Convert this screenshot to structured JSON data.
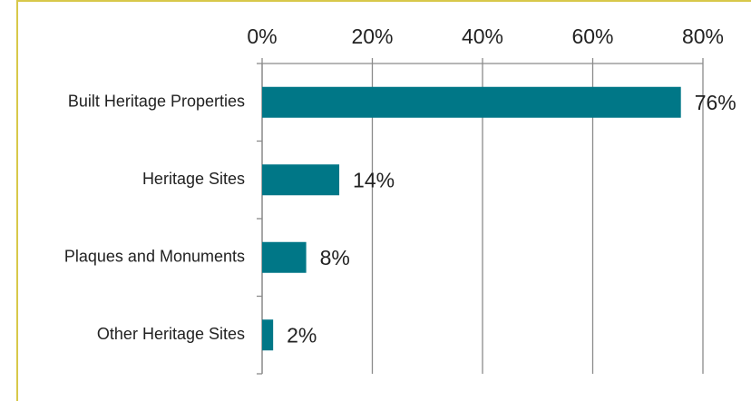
{
  "chart_data": {
    "type": "bar",
    "orientation": "horizontal",
    "categories": [
      "Built Heritage Properties",
      "Heritage Sites",
      "Plaques and Monuments",
      "Other Heritage Sites"
    ],
    "values": [
      76,
      14,
      8,
      2
    ],
    "value_labels": [
      "76%",
      "14%",
      "8%",
      "2%"
    ],
    "color": "#007787",
    "xlim": [
      0,
      80
    ],
    "xticks": [
      {
        "value": 0,
        "label": "0%"
      },
      {
        "value": 20,
        "label": "20%"
      },
      {
        "value": 40,
        "label": "40%"
      },
      {
        "value": 60,
        "label": "60%"
      },
      {
        "value": 80,
        "label": "80%"
      }
    ],
    "grid": true
  }
}
